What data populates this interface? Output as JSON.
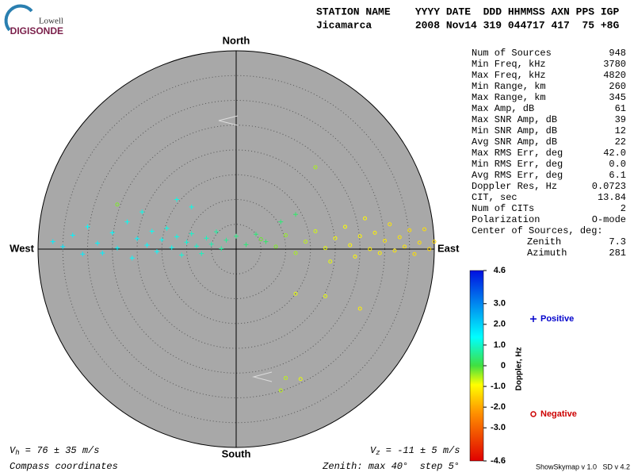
{
  "logo": {
    "top": "Lowell",
    "main": "DIGISONDE"
  },
  "header": {
    "line1": "STATION NAME    YYYY DATE  DDD HHMMSS AXN PPS IGP",
    "line2": "Jicamarca       2008 Nov14 319 044717 417  75 +8G"
  },
  "stats": {
    "rows": [
      [
        "Num of Sources",
        "948"
      ],
      [
        "Min Freq, kHz",
        "3780"
      ],
      [
        "Max Freq, kHz",
        "4820"
      ],
      [
        "Min Range, km",
        "260"
      ],
      [
        "Max Range, km",
        "345"
      ],
      [
        "Max Amp, dB",
        "61"
      ],
      [
        "Max SNR Amp, dB",
        "39"
      ],
      [
        "Min SNR Amp, dB",
        "12"
      ],
      [
        "Avg SNR Amp, dB",
        "22"
      ],
      [
        "Max RMS Err, deg",
        "42.0"
      ],
      [
        "Min RMS Err, deg",
        "0.0"
      ],
      [
        "Avg RMS Err, deg",
        "6.1"
      ],
      [
        "Doppler Res, Hz",
        "0.0723"
      ],
      [
        "CIT, sec",
        "13.84"
      ],
      [
        "Num of CITs",
        "2"
      ],
      [
        "Polarization",
        "O-mode"
      ]
    ],
    "center_title": "Center of Sources, deg:",
    "center_rows": [
      [
        "Zenith",
        "7.3"
      ],
      [
        "Azimuth",
        "281"
      ]
    ]
  },
  "footer": {
    "vh": {
      "symbol": "V",
      "sub": "h",
      "text": " = 76 ± 35 m/s"
    },
    "vz": {
      "symbol": "V",
      "sub": "z",
      "text": " = -11 ± 5 m/s"
    },
    "coords": "Compass coordinates",
    "zenith": "Zenith: max 40°  step 5°",
    "version": "ShowSkymap v 1.0   SD v 4.2"
  },
  "chart_data": {
    "type": "scatter",
    "directions": {
      "north": "North",
      "south": "South",
      "east": "East",
      "west": "West"
    },
    "rlim": [
      0,
      40
    ],
    "rticks": [
      5,
      10,
      15,
      20,
      25,
      30,
      35,
      40
    ],
    "colorbar": {
      "title": "Doppler, Hz",
      "clim": [
        -4.6,
        4.6
      ],
      "ticks": [
        4.6,
        {
          "value": 3,
          "label": "3.0"
        },
        {
          "value": 2,
          "label": "2.0"
        },
        {
          "value": 1,
          "label": "1.0"
        },
        0,
        {
          "value": -1,
          "label": "-1.0"
        },
        {
          "value": -2,
          "label": "-2.0"
        },
        {
          "value": -3,
          "label": "-3.0"
        },
        -4.6
      ]
    },
    "series": [
      {
        "name": "Positive",
        "color": "#0000cc",
        "marker": "plus",
        "x": [
          -37,
          -35,
          -33,
          -31,
          -30,
          -28,
          -27,
          -25,
          -24,
          -22,
          -21,
          -20,
          -19,
          -18,
          -17,
          -16,
          -15,
          -14,
          -13,
          -12,
          -11,
          -10,
          -9,
          -8,
          -7,
          -6,
          -5,
          -4,
          -3,
          -2,
          0,
          2,
          4,
          6,
          9,
          12,
          -12,
          -9
        ],
        "y": [
          1.5,
          0.5,
          2.8,
          -1,
          4.5,
          1.2,
          -0.8,
          3.3,
          0.2,
          5.5,
          -1.8,
          2.1,
          7.5,
          0.8,
          3.6,
          -0.5,
          1.9,
          4.2,
          0.3,
          2.5,
          -1.2,
          1.4,
          3.1,
          0.6,
          -0.9,
          2.2,
          1.0,
          3.5,
          0.1,
          1.8,
          2.6,
          0.9,
          3.0,
          1.5,
          5.5,
          7.0,
          10,
          8.5
        ],
        "doppler": [
          1.6,
          1.7,
          1.5,
          1.6,
          1.4,
          1.5,
          1.6,
          1.4,
          1.5,
          1.3,
          1.4,
          1.5,
          1.2,
          1.4,
          1.3,
          1.4,
          1.3,
          1.2,
          1.3,
          1.2,
          1.1,
          1.1,
          1.0,
          1.0,
          0.9,
          0.9,
          0.8,
          0.7,
          0.7,
          0.6,
          0.5,
          0.4,
          0.4,
          0.3,
          0.4,
          0.3,
          1.2,
          1.2
        ]
      },
      {
        "name": "Negative",
        "color": "#cc0000",
        "marker": "circle",
        "x": [
          5,
          8,
          10,
          12,
          14,
          16,
          18,
          19,
          20,
          22,
          23,
          24,
          25,
          26,
          27,
          28,
          29,
          30,
          31,
          32,
          33,
          34,
          35,
          36,
          37,
          38,
          39,
          40,
          16,
          12,
          18,
          25,
          10,
          9,
          13,
          -24
        ],
        "y": [
          2,
          0.5,
          2.8,
          -0.8,
          1.5,
          3.6,
          0.2,
          -2.5,
          2.2,
          4.5,
          0.8,
          -1.5,
          2.6,
          6.2,
          0.0,
          3.3,
          -0.8,
          1.7,
          5.0,
          -0.3,
          2.4,
          0.5,
          3.8,
          -1.0,
          1.3,
          4.0,
          0.0,
          1.5,
          16.5,
          -9,
          -9.5,
          -12,
          -26,
          -28.5,
          -26.2,
          9
        ],
        "doppler": [
          -0.2,
          -0.3,
          -0.4,
          -0.5,
          -0.6,
          -0.7,
          -0.8,
          -0.8,
          -0.9,
          -0.9,
          -1.0,
          -1.0,
          -1.0,
          -1.0,
          -1.1,
          -1.1,
          -1.1,
          -1.2,
          -1.2,
          -1.2,
          -1.2,
          -1.2,
          -1.3,
          -1.3,
          -1.3,
          -1.3,
          -1.4,
          -1.4,
          -0.5,
          -0.8,
          -0.8,
          -1.1,
          -0.6,
          -0.6,
          -0.8,
          -0.3
        ]
      }
    ]
  }
}
